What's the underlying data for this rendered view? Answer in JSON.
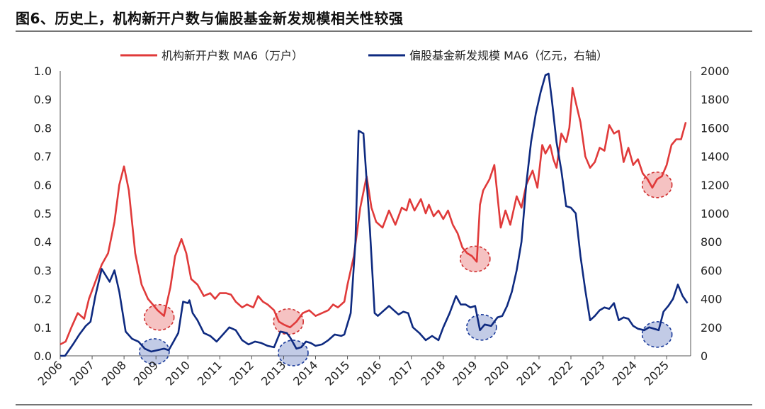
{
  "chart_data": {
    "type": "line",
    "title": "图6、历史上，机构新开户数与偏股基金新发规模相关性较强",
    "legend_position": "top",
    "grid": false,
    "x_ticks": [
      "2006",
      "2007",
      "2008",
      "2009",
      "2010",
      "2011",
      "2012",
      "2013",
      "2014",
      "2015",
      "2016",
      "2017",
      "2018",
      "2019",
      "2020",
      "2021",
      "2022",
      "2023",
      "2024",
      "2025"
    ],
    "xlim": [
      2006.0,
      2025.75
    ],
    "y_left": {
      "ticks": [
        "0.0",
        "0.1",
        "0.2",
        "0.3",
        "0.4",
        "0.5",
        "0.6",
        "0.7",
        "0.8",
        "0.9",
        "1.0"
      ],
      "ylim": [
        0,
        1.0
      ]
    },
    "y_right": {
      "ticks": [
        "0",
        "200",
        "400",
        "600",
        "800",
        "1000",
        "1200",
        "1400",
        "1600",
        "1800",
        "2000"
      ],
      "ylim": [
        0,
        2000
      ]
    },
    "series": [
      {
        "name": "机构新开户数 MA6（万户）",
        "axis": "left",
        "color": "#e03a3a",
        "points": [
          [
            2006.0,
            0.04
          ],
          [
            2006.17,
            0.05
          ],
          [
            2006.35,
            0.1
          ],
          [
            2006.55,
            0.15
          ],
          [
            2006.75,
            0.13
          ],
          [
            2006.9,
            0.2
          ],
          [
            2007.1,
            0.26
          ],
          [
            2007.3,
            0.32
          ],
          [
            2007.5,
            0.36
          ],
          [
            2007.7,
            0.47
          ],
          [
            2007.85,
            0.6
          ],
          [
            2008.0,
            0.665
          ],
          [
            2008.15,
            0.58
          ],
          [
            2008.35,
            0.36
          ],
          [
            2008.55,
            0.25
          ],
          [
            2008.75,
            0.2
          ],
          [
            2008.9,
            0.18
          ],
          [
            2009.05,
            0.16
          ],
          [
            2009.25,
            0.14
          ],
          [
            2009.45,
            0.24
          ],
          [
            2009.6,
            0.35
          ],
          [
            2009.8,
            0.41
          ],
          [
            2009.95,
            0.36
          ],
          [
            2010.1,
            0.27
          ],
          [
            2010.3,
            0.25
          ],
          [
            2010.5,
            0.21
          ],
          [
            2010.7,
            0.22
          ],
          [
            2010.85,
            0.2
          ],
          [
            2011.0,
            0.22
          ],
          [
            2011.2,
            0.22
          ],
          [
            2011.35,
            0.215
          ],
          [
            2011.5,
            0.19
          ],
          [
            2011.7,
            0.17
          ],
          [
            2011.85,
            0.18
          ],
          [
            2012.05,
            0.17
          ],
          [
            2012.2,
            0.21
          ],
          [
            2012.35,
            0.19
          ],
          [
            2012.5,
            0.18
          ],
          [
            2012.7,
            0.16
          ],
          [
            2012.85,
            0.12
          ],
          [
            2013.0,
            0.11
          ],
          [
            2013.2,
            0.1
          ],
          [
            2013.4,
            0.12
          ],
          [
            2013.6,
            0.15
          ],
          [
            2013.8,
            0.16
          ],
          [
            2014.0,
            0.14
          ],
          [
            2014.2,
            0.15
          ],
          [
            2014.4,
            0.16
          ],
          [
            2014.55,
            0.18
          ],
          [
            2014.7,
            0.17
          ],
          [
            2014.9,
            0.19
          ],
          [
            2015.0,
            0.25
          ],
          [
            2015.2,
            0.35
          ],
          [
            2015.4,
            0.52
          ],
          [
            2015.6,
            0.63
          ],
          [
            2015.75,
            0.52
          ],
          [
            2015.9,
            0.47
          ],
          [
            2016.1,
            0.45
          ],
          [
            2016.3,
            0.51
          ],
          [
            2016.5,
            0.46
          ],
          [
            2016.7,
            0.52
          ],
          [
            2016.85,
            0.51
          ],
          [
            2016.95,
            0.55
          ],
          [
            2017.1,
            0.51
          ],
          [
            2017.3,
            0.55
          ],
          [
            2017.45,
            0.5
          ],
          [
            2017.55,
            0.53
          ],
          [
            2017.7,
            0.49
          ],
          [
            2017.85,
            0.51
          ],
          [
            2018.0,
            0.48
          ],
          [
            2018.15,
            0.51
          ],
          [
            2018.3,
            0.46
          ],
          [
            2018.45,
            0.43
          ],
          [
            2018.6,
            0.38
          ],
          [
            2018.75,
            0.36
          ],
          [
            2018.9,
            0.35
          ],
          [
            2019.05,
            0.33
          ],
          [
            2019.15,
            0.53
          ],
          [
            2019.25,
            0.58
          ],
          [
            2019.45,
            0.62
          ],
          [
            2019.6,
            0.67
          ],
          [
            2019.8,
            0.45
          ],
          [
            2019.95,
            0.51
          ],
          [
            2020.1,
            0.46
          ],
          [
            2020.3,
            0.56
          ],
          [
            2020.45,
            0.52
          ],
          [
            2020.6,
            0.6
          ],
          [
            2020.8,
            0.65
          ],
          [
            2020.95,
            0.59
          ],
          [
            2021.1,
            0.74
          ],
          [
            2021.2,
            0.71
          ],
          [
            2021.35,
            0.74
          ],
          [
            2021.45,
            0.69
          ],
          [
            2021.55,
            0.66
          ],
          [
            2021.7,
            0.78
          ],
          [
            2021.85,
            0.75
          ],
          [
            2021.95,
            0.8
          ],
          [
            2022.05,
            0.94
          ],
          [
            2022.15,
            0.89
          ],
          [
            2022.3,
            0.82
          ],
          [
            2022.45,
            0.7
          ],
          [
            2022.6,
            0.66
          ],
          [
            2022.75,
            0.68
          ],
          [
            2022.9,
            0.73
          ],
          [
            2023.05,
            0.72
          ],
          [
            2023.2,
            0.81
          ],
          [
            2023.35,
            0.78
          ],
          [
            2023.5,
            0.79
          ],
          [
            2023.65,
            0.68
          ],
          [
            2023.8,
            0.73
          ],
          [
            2023.95,
            0.67
          ],
          [
            2024.1,
            0.69
          ],
          [
            2024.25,
            0.64
          ],
          [
            2024.4,
            0.62
          ],
          [
            2024.55,
            0.59
          ],
          [
            2024.7,
            0.62
          ],
          [
            2024.85,
            0.63
          ],
          [
            2025.0,
            0.67
          ],
          [
            2025.15,
            0.74
          ],
          [
            2025.3,
            0.76
          ],
          [
            2025.45,
            0.76
          ],
          [
            2025.6,
            0.82
          ]
        ]
      },
      {
        "name": "偏股基金新发规模 MA6（亿元，右轴）",
        "axis": "right",
        "color": "#0e2a80",
        "points": [
          [
            2006.0,
            0
          ],
          [
            2006.15,
            0
          ],
          [
            2006.4,
            80
          ],
          [
            2006.6,
            150
          ],
          [
            2006.8,
            210
          ],
          [
            2006.95,
            240
          ],
          [
            2007.1,
            420
          ],
          [
            2007.3,
            610
          ],
          [
            2007.55,
            520
          ],
          [
            2007.7,
            600
          ],
          [
            2007.85,
            450
          ],
          [
            2008.05,
            170
          ],
          [
            2008.25,
            120
          ],
          [
            2008.45,
            100
          ],
          [
            2008.65,
            50
          ],
          [
            2008.85,
            30
          ],
          [
            2009.05,
            40
          ],
          [
            2009.25,
            50
          ],
          [
            2009.4,
            40
          ],
          [
            2009.55,
            100
          ],
          [
            2009.7,
            160
          ],
          [
            2009.85,
            380
          ],
          [
            2010.0,
            370
          ],
          [
            2010.05,
            390
          ],
          [
            2010.15,
            300
          ],
          [
            2010.3,
            250
          ],
          [
            2010.5,
            160
          ],
          [
            2010.7,
            140
          ],
          [
            2010.9,
            100
          ],
          [
            2011.1,
            150
          ],
          [
            2011.3,
            200
          ],
          [
            2011.5,
            180
          ],
          [
            2011.7,
            110
          ],
          [
            2011.9,
            80
          ],
          [
            2012.1,
            100
          ],
          [
            2012.3,
            90
          ],
          [
            2012.5,
            70
          ],
          [
            2012.7,
            60
          ],
          [
            2012.9,
            170
          ],
          [
            2013.1,
            160
          ],
          [
            2013.2,
            130
          ],
          [
            2013.4,
            50
          ],
          [
            2013.55,
            60
          ],
          [
            2013.7,
            100
          ],
          [
            2013.85,
            90
          ],
          [
            2014.0,
            70
          ],
          [
            2014.2,
            80
          ],
          [
            2014.4,
            110
          ],
          [
            2014.6,
            150
          ],
          [
            2014.8,
            140
          ],
          [
            2014.9,
            150
          ],
          [
            2015.1,
            300
          ],
          [
            2015.25,
            800
          ],
          [
            2015.35,
            1580
          ],
          [
            2015.5,
            1560
          ],
          [
            2015.7,
            900
          ],
          [
            2015.85,
            300
          ],
          [
            2015.95,
            280
          ],
          [
            2016.1,
            310
          ],
          [
            2016.3,
            350
          ],
          [
            2016.45,
            320
          ],
          [
            2016.6,
            290
          ],
          [
            2016.75,
            310
          ],
          [
            2016.9,
            300
          ],
          [
            2017.05,
            200
          ],
          [
            2017.25,
            160
          ],
          [
            2017.45,
            110
          ],
          [
            2017.65,
            140
          ],
          [
            2017.85,
            110
          ],
          [
            2018.0,
            200
          ],
          [
            2018.2,
            300
          ],
          [
            2018.4,
            420
          ],
          [
            2018.55,
            360
          ],
          [
            2018.7,
            360
          ],
          [
            2018.85,
            340
          ],
          [
            2019.0,
            350
          ],
          [
            2019.15,
            180
          ],
          [
            2019.3,
            220
          ],
          [
            2019.5,
            210
          ],
          [
            2019.7,
            270
          ],
          [
            2019.85,
            280
          ],
          [
            2020.0,
            350
          ],
          [
            2020.15,
            450
          ],
          [
            2020.3,
            600
          ],
          [
            2020.45,
            800
          ],
          [
            2020.6,
            1200
          ],
          [
            2020.75,
            1500
          ],
          [
            2020.9,
            1700
          ],
          [
            2021.05,
            1850
          ],
          [
            2021.2,
            1970
          ],
          [
            2021.3,
            1980
          ],
          [
            2021.4,
            1800
          ],
          [
            2021.55,
            1500
          ],
          [
            2021.7,
            1300
          ],
          [
            2021.85,
            1050
          ],
          [
            2022.0,
            1040
          ],
          [
            2022.15,
            1000
          ],
          [
            2022.3,
            700
          ],
          [
            2022.45,
            460
          ],
          [
            2022.6,
            250
          ],
          [
            2022.75,
            280
          ],
          [
            2022.9,
            320
          ],
          [
            2023.05,
            340
          ],
          [
            2023.2,
            330
          ],
          [
            2023.35,
            370
          ],
          [
            2023.5,
            250
          ],
          [
            2023.65,
            270
          ],
          [
            2023.8,
            260
          ],
          [
            2023.95,
            210
          ],
          [
            2024.1,
            190
          ],
          [
            2024.3,
            180
          ],
          [
            2024.45,
            200
          ],
          [
            2024.6,
            190
          ],
          [
            2024.75,
            180
          ],
          [
            2024.9,
            310
          ],
          [
            2025.05,
            350
          ],
          [
            2025.2,
            400
          ],
          [
            2025.35,
            500
          ],
          [
            2025.5,
            420
          ],
          [
            2025.65,
            370
          ]
        ]
      }
    ],
    "highlights": [
      {
        "axis": "left",
        "x": 2009.1,
        "y": 0.135,
        "color": "red"
      },
      {
        "axis": "left",
        "x": 2013.15,
        "y": 0.12,
        "color": "red"
      },
      {
        "axis": "left",
        "x": 2019.0,
        "y": 0.34,
        "color": "red"
      },
      {
        "axis": "left",
        "x": 2024.7,
        "y": 0.6,
        "color": "red"
      },
      {
        "axis": "right",
        "x": 2008.95,
        "y": 30,
        "color": "blue"
      },
      {
        "axis": "right",
        "x": 2013.3,
        "y": 20,
        "color": "blue"
      },
      {
        "axis": "right",
        "x": 2019.2,
        "y": 200,
        "color": "blue"
      },
      {
        "axis": "right",
        "x": 2024.7,
        "y": 150,
        "color": "blue"
      }
    ]
  }
}
